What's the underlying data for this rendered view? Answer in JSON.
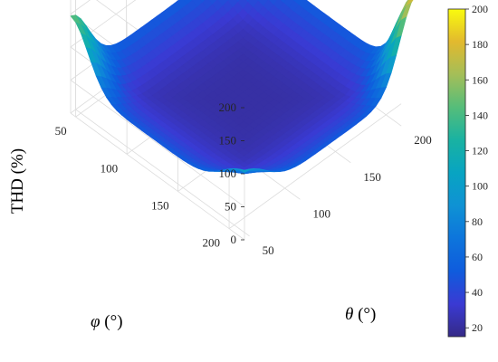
{
  "chart_data": {
    "type": "surface3d",
    "title": "",
    "xlabel_symbol": "θ",
    "xlabel_unit": " (°)",
    "ylabel_symbol": "φ",
    "ylabel_unit": " (°)",
    "zlabel": "THD (%)",
    "x_range": [
      45,
      215
    ],
    "y_range": [
      45,
      215
    ],
    "z_range": [
      0,
      200
    ],
    "x_ticks": [
      "50",
      "100",
      "150",
      "200"
    ],
    "y_ticks": [
      "50",
      "100",
      "150",
      "200"
    ],
    "z_ticks": [
      "0",
      "50",
      "100",
      "150",
      "200"
    ],
    "colorbar": {
      "range": [
        15,
        200
      ],
      "ticks": [
        "20",
        "40",
        "60",
        "80",
        "100",
        "120",
        "140",
        "160",
        "180",
        "200"
      ],
      "colormap": "parula"
    },
    "grid": true,
    "surface_points": [
      {
        "theta": 50,
        "phi": 50,
        "thd": 115
      },
      {
        "theta": 50,
        "phi": 200,
        "thd": 65
      },
      {
        "theta": 200,
        "phi": 50,
        "thd": 65
      },
      {
        "theta": 200,
        "phi": 200,
        "thd": 155
      },
      {
        "theta": 125,
        "phi": 125,
        "thd": 25
      }
    ]
  }
}
